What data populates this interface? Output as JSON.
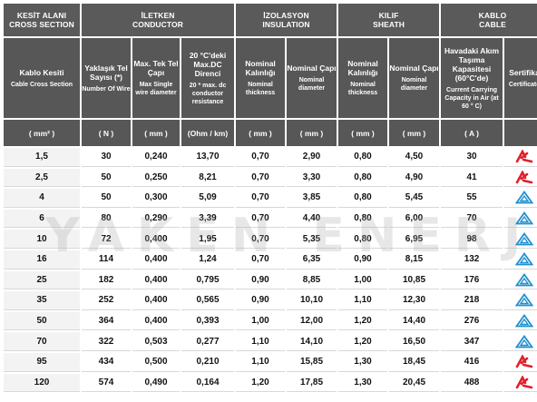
{
  "groups": {
    "cross_section": [
      "KESİT ALANI",
      "CROSS SECTION"
    ],
    "conductor": [
      "İLETKEN",
      "CONDUCTOR"
    ],
    "insulation": [
      "İZOLASYON",
      "INSULATION"
    ],
    "sheath": [
      "KILIF",
      "SHEATH"
    ],
    "cable": [
      "KABLO",
      "CABLE"
    ]
  },
  "headers": [
    {
      "tr": "Kablo Kesiti",
      "en": "Cable Cross Section",
      "unit": "( mm² )"
    },
    {
      "tr": "Yaklaşık Tel Sayısı (*)",
      "en": "Number Of Wire",
      "unit": "( N )"
    },
    {
      "tr": "Max. Tek Tel Çapı",
      "en": "Max Single wire diameter",
      "unit": "( mm )"
    },
    {
      "tr": "20 °C'deki Max.DC Direnci",
      "en": "20 * max. dc conductor resistance",
      "unit": "(Ohm / km)"
    },
    {
      "tr": "Nominal Kalınlığı",
      "en": "Nominal thickness",
      "unit": "( mm )"
    },
    {
      "tr": "Nominal Çapı",
      "en": "Nominal diameter",
      "unit": "( mm )"
    },
    {
      "tr": "Nominal Kalınlığı",
      "en": "Nominal thickness",
      "unit": "( mm )"
    },
    {
      "tr": "Nominal Çapı",
      "en": "Nominal diameter",
      "unit": "( mm )"
    },
    {
      "tr": "Havadaki Akım Taşıma Kapasitesi (60°C'de)",
      "en": "Current Carrying Capacity in Air (at 60 ° C)",
      "unit": "( A )"
    },
    {
      "tr": "Sertifika",
      "en": "Certificate",
      "unit": ""
    }
  ],
  "rows": [
    {
      "cells": [
        "1,5",
        "30",
        "0,240",
        "13,70",
        "0,70",
        "2,90",
        "0,80",
        "4,50",
        "30"
      ],
      "cert": "red-mark"
    },
    {
      "cells": [
        "2,5",
        "50",
        "0,250",
        "8,21",
        "0,70",
        "3,30",
        "0,80",
        "4,90",
        "41"
      ],
      "cert": "red-mark"
    },
    {
      "cells": [
        "4",
        "50",
        "0,300",
        "5,09",
        "0,70",
        "3,85",
        "0,80",
        "5,45",
        "55"
      ],
      "cert": "blue-triangle"
    },
    {
      "cells": [
        "6",
        "80",
        "0,290",
        "3,39",
        "0,70",
        "4,40",
        "0,80",
        "6,00",
        "70"
      ],
      "cert": "blue-triangle"
    },
    {
      "cells": [
        "10",
        "72",
        "0,400",
        "1,95",
        "0,70",
        "5,35",
        "0,80",
        "6,95",
        "98"
      ],
      "cert": "blue-triangle"
    },
    {
      "cells": [
        "16",
        "114",
        "0,400",
        "1,24",
        "0,70",
        "6,35",
        "0,90",
        "8,15",
        "132"
      ],
      "cert": "blue-triangle"
    },
    {
      "cells": [
        "25",
        "182",
        "0,400",
        "0,795",
        "0,90",
        "8,85",
        "1,00",
        "10,85",
        "176"
      ],
      "cert": "blue-triangle"
    },
    {
      "cells": [
        "35",
        "252",
        "0,400",
        "0,565",
        "0,90",
        "10,10",
        "1,10",
        "12,30",
        "218"
      ],
      "cert": "blue-triangle"
    },
    {
      "cells": [
        "50",
        "364",
        "0,400",
        "0,393",
        "1,00",
        "12,00",
        "1,20",
        "14,40",
        "276"
      ],
      "cert": "blue-triangle"
    },
    {
      "cells": [
        "70",
        "322",
        "0,503",
        "0,277",
        "1,10",
        "14,10",
        "1,20",
        "16,50",
        "347"
      ],
      "cert": "blue-triangle"
    },
    {
      "cells": [
        "95",
        "434",
        "0,500",
        "0,210",
        "1,10",
        "15,85",
        "1,30",
        "18,45",
        "416"
      ],
      "cert": "red-mark"
    },
    {
      "cells": [
        "120",
        "574",
        "0,490",
        "0,164",
        "1,20",
        "17,85",
        "1,30",
        "20,45",
        "488"
      ],
      "cert": "red-mark"
    }
  ],
  "watermark": "YAKEN ENERJİ",
  "colors": {
    "header_bg": "#575757",
    "cert_red": "#e0202a",
    "cert_blue": "#1f8fcf"
  }
}
